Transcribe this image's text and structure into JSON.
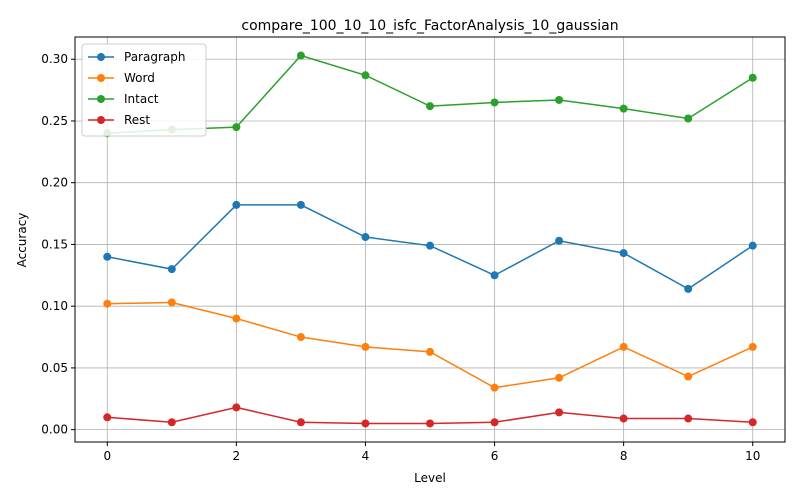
{
  "chart_data": {
    "type": "line",
    "title": "compare_100_10_10_isfc_FactorAnalysis_10_gaussian",
    "xlabel": "Level",
    "ylabel": "Accuracy",
    "x": [
      0,
      1,
      2,
      3,
      4,
      5,
      6,
      7,
      8,
      9,
      10
    ],
    "xlim": [
      -0.5,
      10.5
    ],
    "ylim": [
      -0.01,
      0.318
    ],
    "xticks": [
      "0",
      "2",
      "4",
      "6",
      "8",
      "10"
    ],
    "xtick_values": [
      0,
      2,
      4,
      6,
      8,
      10
    ],
    "yticks": [
      "0.00",
      "0.05",
      "0.10",
      "0.15",
      "0.20",
      "0.25",
      "0.30"
    ],
    "ytick_values": [
      0.0,
      0.05,
      0.1,
      0.15,
      0.2,
      0.25,
      0.3
    ],
    "grid": true,
    "legend_position": "upper left",
    "series": [
      {
        "name": "Paragraph",
        "color": "#1f77b4",
        "values": [
          0.14,
          0.13,
          0.182,
          0.182,
          0.156,
          0.149,
          0.125,
          0.153,
          0.143,
          0.114,
          0.149
        ]
      },
      {
        "name": "Word",
        "color": "#ff7f0e",
        "values": [
          0.102,
          0.103,
          0.09,
          0.075,
          0.067,
          0.063,
          0.034,
          0.042,
          0.067,
          0.043,
          0.067
        ]
      },
      {
        "name": "Intact",
        "color": "#2ca02c",
        "values": [
          0.24,
          0.243,
          0.245,
          0.303,
          0.287,
          0.262,
          0.265,
          0.267,
          0.26,
          0.252,
          0.285
        ]
      },
      {
        "name": "Rest",
        "color": "#d62728",
        "values": [
          0.01,
          0.006,
          0.018,
          0.006,
          0.005,
          0.005,
          0.006,
          0.014,
          0.009,
          0.009,
          0.006
        ]
      }
    ]
  }
}
